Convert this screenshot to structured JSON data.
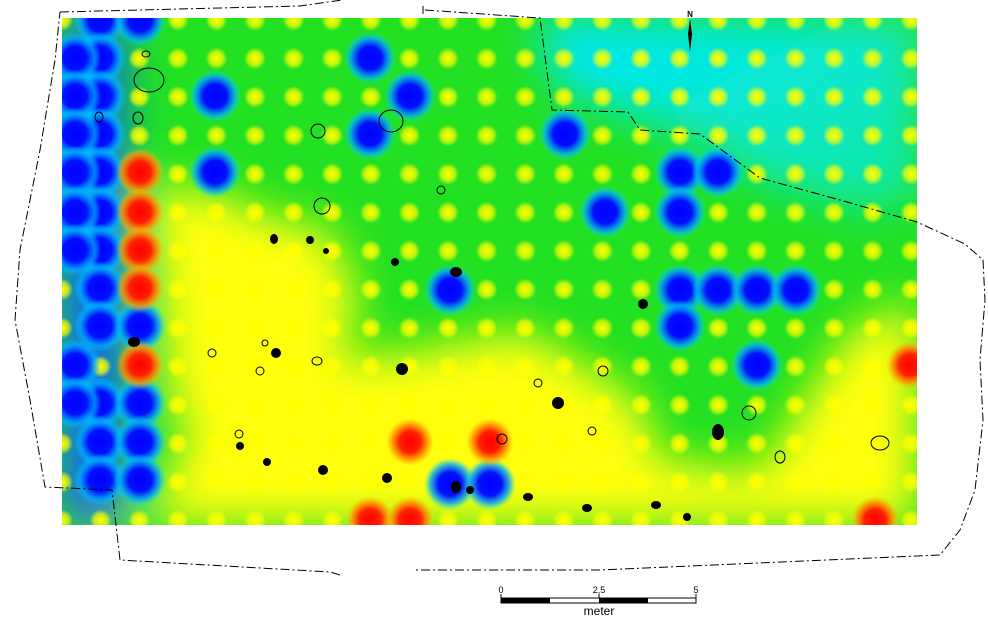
{
  "map": {
    "north_label": "N",
    "colors": {
      "low": "#0010ff",
      "mid_low": "#00e8ff",
      "mid": "#10e010",
      "mid_high": "#ffff00",
      "high": "#ff1010"
    }
  },
  "scale_bar": {
    "tick_0": "0",
    "tick_mid": "2,5",
    "tick_end": "5",
    "unit": "meter"
  }
}
